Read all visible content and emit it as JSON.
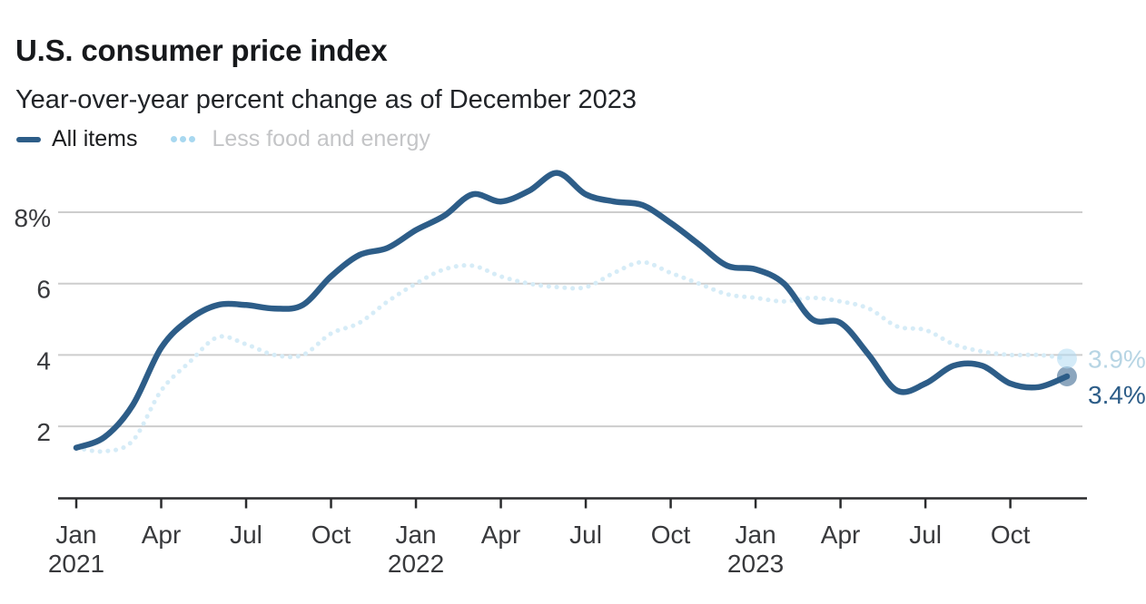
{
  "header": {
    "title": "U.S. consumer price index",
    "subtitle": "Year-over-year percent change as of December 2023"
  },
  "chart_data": {
    "type": "line",
    "title": "U.S. consumer price index",
    "subtitle": "Year-over-year percent change as of December 2023",
    "x_range": [
      "Jan 2021",
      "Dec 2023"
    ],
    "ylim": [
      0,
      9.6
    ],
    "grid": "horizontal-only",
    "legend_position": "top-left",
    "grid_color": "#cdcdcd",
    "axis_color": "#2b2c2e",
    "axis_label_color": "#38393c",
    "months": [
      "Jan 2021",
      "Feb 2021",
      "Mar 2021",
      "Apr 2021",
      "May 2021",
      "Jun 2021",
      "Jul 2021",
      "Aug 2021",
      "Sep 2021",
      "Oct 2021",
      "Nov 2021",
      "Dec 2021",
      "Jan 2022",
      "Feb 2022",
      "Mar 2022",
      "Apr 2022",
      "May 2022",
      "Jun 2022",
      "Jul 2022",
      "Aug 2022",
      "Sep 2022",
      "Oct 2022",
      "Nov 2022",
      "Dec 2022",
      "Jan 2023",
      "Feb 2023",
      "Mar 2023",
      "Apr 2023",
      "May 2023",
      "Jun 2023",
      "Jul 2023",
      "Aug 2023",
      "Sep 2023",
      "Oct 2023",
      "Nov 2023",
      "Dec 2023"
    ],
    "series": [
      {
        "name": "All items",
        "style": "solid",
        "color": "#2d5d88",
        "end_dot_color": "rgba(45,93,136,0.55)",
        "end_label": "3.4%",
        "end_label_color": "#2d5d88",
        "values": [
          1.4,
          1.7,
          2.6,
          4.2,
          5.0,
          5.4,
          5.4,
          5.3,
          5.4,
          6.2,
          6.8,
          7.0,
          7.5,
          7.9,
          8.5,
          8.3,
          8.6,
          9.1,
          8.5,
          8.3,
          8.2,
          7.7,
          7.1,
          6.5,
          6.4,
          6.0,
          5.0,
          4.9,
          4.0,
          3.0,
          3.2,
          3.7,
          3.7,
          3.2,
          3.1,
          3.4
        ]
      },
      {
        "name": "Less food and energy",
        "style": "dotted",
        "color": "#d6ecf7",
        "end_dot_color": "rgba(176,219,242,0.55)",
        "end_label": "3.9%",
        "end_label_color": "#b7d5e4",
        "values": [
          1.4,
          1.3,
          1.6,
          3.0,
          3.8,
          4.5,
          4.3,
          4.0,
          4.0,
          4.6,
          4.9,
          5.5,
          6.0,
          6.4,
          6.5,
          6.2,
          6.0,
          5.9,
          5.9,
          6.3,
          6.6,
          6.3,
          6.0,
          5.7,
          5.6,
          5.5,
          5.6,
          5.5,
          5.3,
          4.8,
          4.7,
          4.3,
          4.1,
          4.0,
          4.0,
          3.9
        ]
      }
    ],
    "y_ticks": [
      {
        "value": 8,
        "label": "8%"
      },
      {
        "value": 6,
        "label": "6"
      },
      {
        "value": 4,
        "label": "4"
      },
      {
        "value": 2,
        "label": "2"
      }
    ],
    "x_ticks": [
      {
        "month_index": 0,
        "label": "Jan",
        "year": "2021"
      },
      {
        "month_index": 3,
        "label": "Apr"
      },
      {
        "month_index": 6,
        "label": "Jul"
      },
      {
        "month_index": 9,
        "label": "Oct"
      },
      {
        "month_index": 12,
        "label": "Jan",
        "year": "2022"
      },
      {
        "month_index": 15,
        "label": "Apr"
      },
      {
        "month_index": 18,
        "label": "Jul"
      },
      {
        "month_index": 21,
        "label": "Oct"
      },
      {
        "month_index": 24,
        "label": "Jan",
        "year": "2023"
      },
      {
        "month_index": 27,
        "label": "Apr"
      },
      {
        "month_index": 30,
        "label": "Jul"
      },
      {
        "month_index": 33,
        "label": "Oct"
      }
    ]
  }
}
